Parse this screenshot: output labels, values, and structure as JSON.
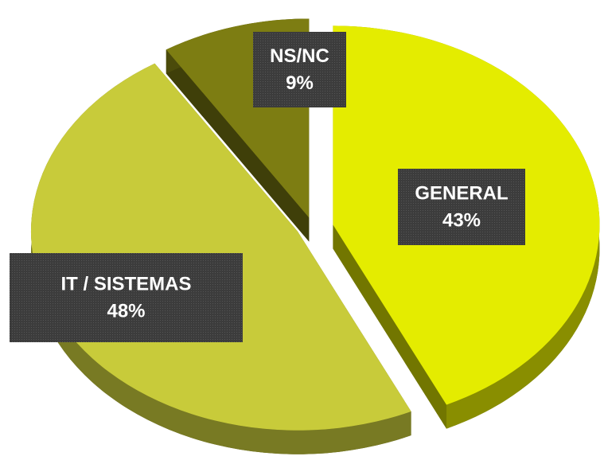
{
  "chart_data": {
    "type": "pie",
    "categories": [
      "GENERAL",
      "IT / SISTEMAS",
      "NS/NC"
    ],
    "values": [
      43,
      48,
      9
    ],
    "value_labels": [
      "43%",
      "48%",
      "9%"
    ],
    "colors": [
      "#e4ec00",
      "#c8cb3a",
      "#7d7d12"
    ]
  }
}
